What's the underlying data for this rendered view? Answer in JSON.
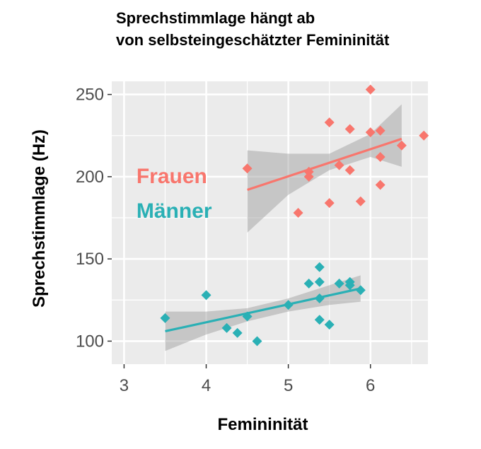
{
  "chart_data": {
    "type": "scatter",
    "title": "Sprechstimmlage hängt ab\nvon selbsteingeschätzter Femininität",
    "title_lines": [
      "Sprechstimmlage hängt ab",
      "von selbsteingeschätzter Femininität"
    ],
    "xlabel": "Femininität",
    "ylabel": "Sprechstimmlage (Hz)",
    "xlim": [
      2.85,
      6.7
    ],
    "ylim": [
      86,
      258
    ],
    "x_ticks": [
      3,
      4,
      5,
      6
    ],
    "y_ticks": [
      100,
      150,
      200,
      250
    ],
    "grid": true,
    "legend": "none",
    "annotations": [
      {
        "text": "Frauen",
        "color": "#F8766D",
        "x": 3.15,
        "y": 196
      },
      {
        "text": "Männer",
        "color": "#2AB0B5",
        "x": 3.15,
        "y": 175
      }
    ],
    "series": [
      {
        "name": "Frauen",
        "color": "#F8766D",
        "points": [
          [
            4.5,
            205
          ],
          [
            5.12,
            178
          ],
          [
            5.25,
            203
          ],
          [
            5.25,
            200
          ],
          [
            5.5,
            233
          ],
          [
            5.5,
            184
          ],
          [
            5.62,
            207
          ],
          [
            5.75,
            229
          ],
          [
            5.75,
            204
          ],
          [
            5.88,
            185
          ],
          [
            6.0,
            253
          ],
          [
            6.0,
            227
          ],
          [
            6.12,
            228
          ],
          [
            6.12,
            212
          ],
          [
            6.12,
            195
          ],
          [
            6.38,
            219
          ],
          [
            6.65,
            225
          ]
        ],
        "trend": {
          "x0": 4.5,
          "y0": 192,
          "x1": 6.38,
          "y1": 223
        },
        "ci": [
          {
            "x": 4.5,
            "lo": 166,
            "hi": 216
          },
          {
            "x": 5.0,
            "lo": 189,
            "hi": 214
          },
          {
            "x": 5.5,
            "lo": 204,
            "hi": 214
          },
          {
            "x": 6.0,
            "lo": 212,
            "hi": 226
          },
          {
            "x": 6.38,
            "lo": 206,
            "hi": 244
          }
        ]
      },
      {
        "name": "Männer",
        "color": "#2AB0B5",
        "points": [
          [
            3.5,
            114
          ],
          [
            4.0,
            128
          ],
          [
            4.25,
            108
          ],
          [
            4.38,
            105
          ],
          [
            4.5,
            115
          ],
          [
            4.62,
            100
          ],
          [
            5.0,
            122
          ],
          [
            5.25,
            135
          ],
          [
            5.38,
            145
          ],
          [
            5.38,
            136
          ],
          [
            5.38,
            126
          ],
          [
            5.38,
            113
          ],
          [
            5.5,
            110
          ],
          [
            5.62,
            135
          ],
          [
            5.75,
            136
          ],
          [
            5.75,
            134
          ],
          [
            5.88,
            131
          ]
        ],
        "trend": {
          "x0": 3.5,
          "y0": 106,
          "x1": 5.88,
          "y1": 132
        },
        "ci": [
          {
            "x": 3.5,
            "lo": 94,
            "hi": 118
          },
          {
            "x": 4.0,
            "lo": 104,
            "hi": 118
          },
          {
            "x": 4.5,
            "lo": 112,
            "hi": 120
          },
          {
            "x": 5.0,
            "lo": 118,
            "hi": 126
          },
          {
            "x": 5.5,
            "lo": 122,
            "hi": 134
          },
          {
            "x": 5.88,
            "lo": 124,
            "hi": 140
          }
        ]
      }
    ]
  },
  "colors": {
    "panel_bg": "#EBEBEB",
    "grid": "#FFFFFF",
    "ci_fill": "#999999",
    "tick_text": "#4D4D4D"
  }
}
